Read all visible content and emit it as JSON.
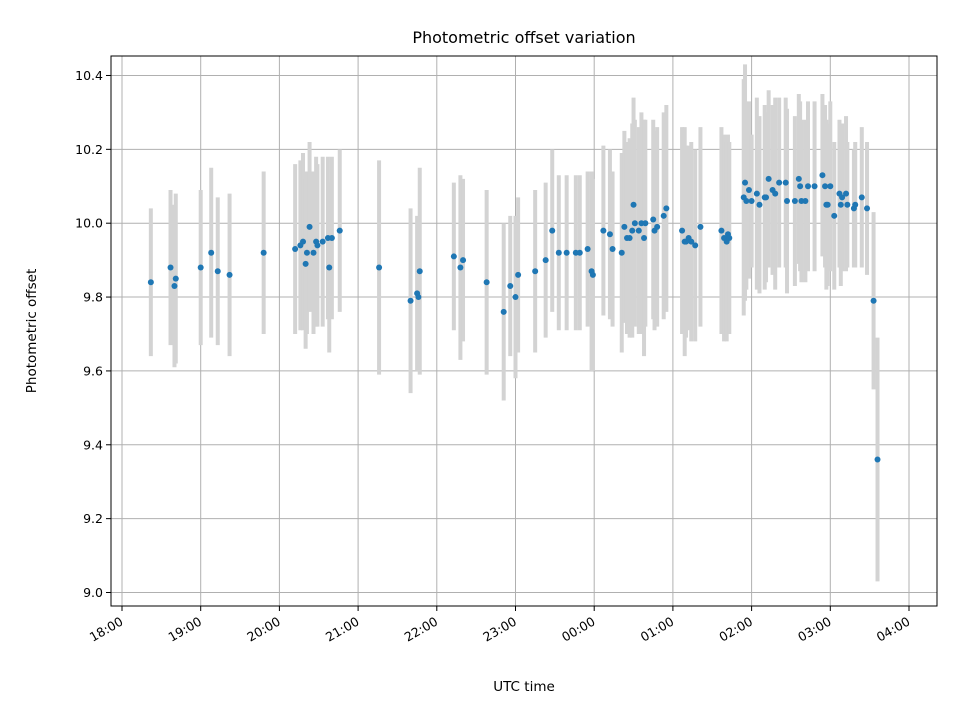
{
  "chart_data": {
    "type": "scatter",
    "title": "Photometric offset variation",
    "xlabel": "UTC time",
    "ylabel": "Photometric offset",
    "xlim": [
      "18:00",
      "04:00"
    ],
    "ylim": [
      9.0,
      10.4
    ],
    "x_ticks": [
      "18:00",
      "19:00",
      "20:00",
      "21:00",
      "22:00",
      "23:00",
      "00:00",
      "01:00",
      "02:00",
      "03:00",
      "04:00"
    ],
    "y_ticks": [
      "9.0",
      "9.2",
      "9.4",
      "9.6",
      "9.8",
      "10.0",
      "10.2",
      "10.4"
    ],
    "grid": true,
    "colors": {
      "points": "#1f77b4",
      "errorbars": "#d3d3d3",
      "grid": "#b0b0b0"
    },
    "series": [
      {
        "x": [
          "18:22",
          "18:37",
          "18:40",
          "18:41",
          "19:00",
          "19:08",
          "19:13",
          "19:22",
          "19:48",
          "20:12",
          "20:16",
          "20:18",
          "20:20",
          "20:21",
          "20:23",
          "20:26",
          "20:28",
          "20:29",
          "20:33",
          "20:37",
          "20:38",
          "20:40",
          "20:46",
          "21:16",
          "21:40",
          "21:45",
          "21:46",
          "21:47",
          "22:13",
          "22:18",
          "22:20",
          "22:38",
          "22:51",
          "22:56",
          "23:00",
          "23:02",
          "23:15",
          "23:23",
          "23:28",
          "23:33",
          "23:39",
          "23:46",
          "23:49",
          "23:55",
          "23:58",
          "23:59",
          "24:07",
          "24:12",
          "24:14",
          "24:21",
          "24:23",
          "24:25",
          "24:27",
          "24:29",
          "24:30",
          "24:31",
          "24:34",
          "24:36",
          "24:38",
          "24:39",
          "24:45",
          "24:46",
          "24:48",
          "24:53",
          "24:55",
          "25:07",
          "25:09",
          "25:10",
          "25:12",
          "25:14",
          "25:17",
          "25:21",
          "25:37",
          "25:39",
          "25:41",
          "25:42",
          "25:43",
          "25:54",
          "25:55",
          "25:56",
          "25:58",
          "26:00",
          "26:04",
          "26:06",
          "26:10",
          "26:11",
          "26:13",
          "26:16",
          "26:18",
          "26:21",
          "26:26",
          "26:27",
          "26:33",
          "26:36",
          "26:37",
          "26:38",
          "26:41",
          "26:43",
          "26:48",
          "26:54",
          "26:56",
          "26:57",
          "26:58",
          "27:00",
          "27:03",
          "27:07",
          "27:08",
          "27:09",
          "27:12",
          "27:13",
          "27:18",
          "27:19",
          "27:24",
          "27:28",
          "27:33",
          "27:36"
        ],
        "y": [
          9.84,
          9.88,
          9.83,
          9.85,
          9.88,
          9.92,
          9.87,
          9.86,
          9.92,
          9.93,
          9.94,
          9.95,
          9.89,
          9.92,
          9.99,
          9.92,
          9.95,
          9.94,
          9.95,
          9.96,
          9.88,
          9.96,
          9.98,
          9.88,
          9.79,
          9.81,
          9.8,
          9.87,
          9.91,
          9.88,
          9.9,
          9.84,
          9.76,
          9.83,
          9.8,
          9.86,
          9.87,
          9.9,
          9.98,
          9.92,
          9.92,
          9.92,
          9.92,
          9.93,
          9.87,
          9.86,
          9.98,
          9.97,
          9.93,
          9.92,
          9.99,
          9.96,
          9.96,
          9.98,
          10.05,
          10.0,
          9.98,
          10.0,
          9.96,
          10.0,
          10.01,
          9.98,
          9.99,
          10.02,
          10.04,
          9.98,
          9.95,
          9.95,
          9.96,
          9.95,
          9.94,
          9.99,
          9.98,
          9.96,
          9.95,
          9.97,
          9.96,
          10.07,
          10.11,
          10.06,
          10.09,
          10.06,
          10.08,
          10.05,
          10.07,
          10.07,
          10.12,
          10.09,
          10.08,
          10.11,
          10.11,
          10.06,
          10.06,
          10.12,
          10.1,
          10.06,
          10.06,
          10.1,
          10.1,
          10.13,
          10.1,
          10.05,
          10.05,
          10.1,
          10.02,
          10.08,
          10.05,
          10.07,
          10.08,
          10.05,
          10.04,
          10.05,
          10.07,
          10.04,
          9.79,
          9.36
        ],
        "error": [
          0.2,
          0.21,
          0.22,
          0.23,
          0.21,
          0.23,
          0.2,
          0.22,
          0.22,
          0.23,
          0.23,
          0.24,
          0.23,
          0.22,
          0.23,
          0.22,
          0.23,
          0.22,
          0.23,
          0.22,
          0.23,
          0.22,
          0.22,
          0.29,
          0.25,
          0.21,
          0.2,
          0.28,
          0.2,
          0.25,
          0.22,
          0.25,
          0.24,
          0.19,
          0.22,
          0.21,
          0.22,
          0.21,
          0.22,
          0.21,
          0.21,
          0.21,
          0.21,
          0.21,
          0.27,
          0.26,
          0.23,
          0.23,
          0.21,
          0.27,
          0.26,
          0.26,
          0.27,
          0.29,
          0.29,
          0.28,
          0.28,
          0.3,
          0.32,
          0.28,
          0.27,
          0.27,
          0.27,
          0.28,
          0.28,
          0.28,
          0.31,
          0.26,
          0.25,
          0.27,
          0.26,
          0.27,
          0.28,
          0.28,
          0.27,
          0.27,
          0.26,
          0.32,
          0.32,
          0.24,
          0.24,
          0.18,
          0.26,
          0.24,
          0.25,
          0.23,
          0.24,
          0.23,
          0.26,
          0.23,
          0.23,
          0.25,
          0.23,
          0.23,
          0.23,
          0.22,
          0.22,
          0.23,
          0.23,
          0.22,
          0.22,
          0.23,
          0.22,
          0.23,
          0.2,
          0.2,
          0.22,
          0.2,
          0.21,
          0.17,
          0.16,
          0.17,
          0.19,
          0.18,
          0.24,
          0.33
        ]
      }
    ]
  }
}
